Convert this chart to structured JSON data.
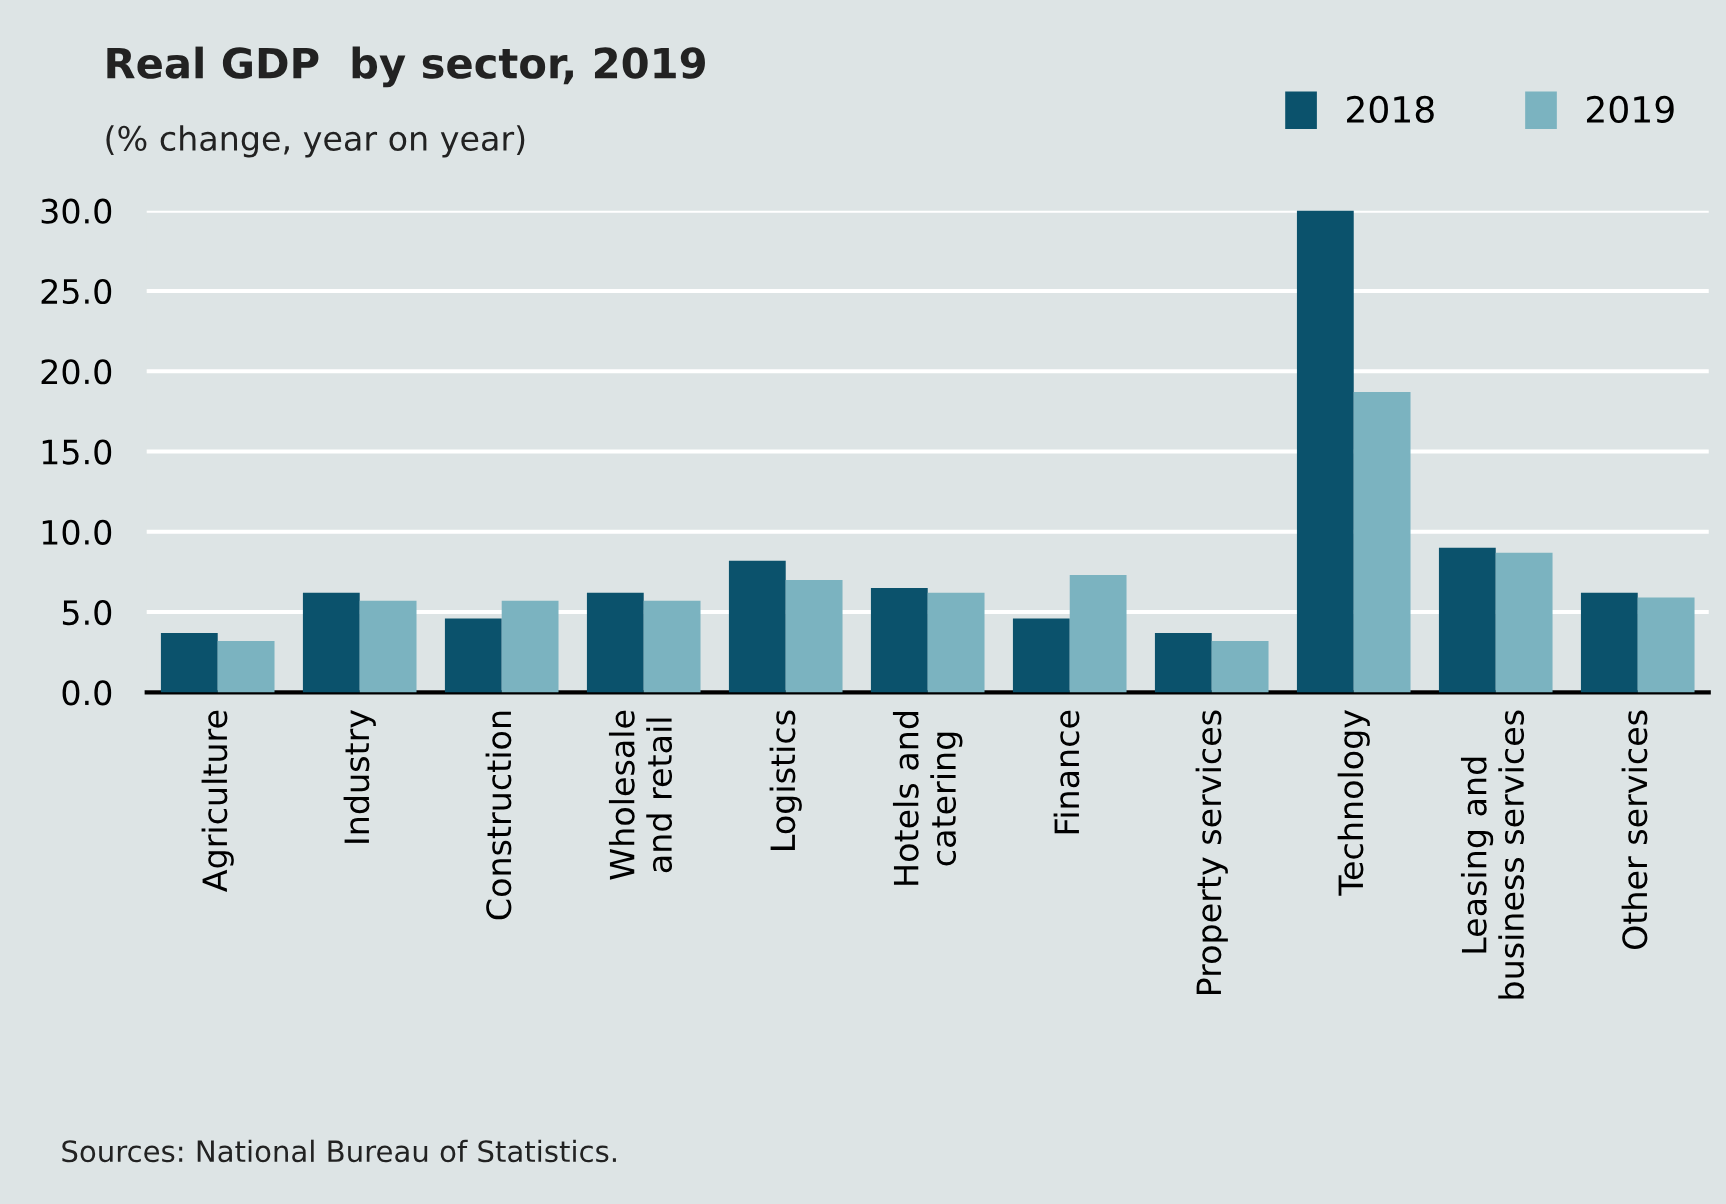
{
  "chart_data": {
    "type": "bar",
    "title": "Real GDP  by sector, 2019",
    "subtitle": "(% change, year on year)",
    "categories": [
      "Agriculture",
      "Industry",
      "Construction",
      "Wholesale\nand retail",
      "Logistics",
      "Hotels and\ncatering",
      "Finance",
      "Property services",
      "Technology",
      "Leasing and\nbusiness services",
      "Other services"
    ],
    "series": [
      {
        "name": "2018",
        "color": "#0b526c",
        "values": [
          3.7,
          6.2,
          4.6,
          6.2,
          8.2,
          6.5,
          4.6,
          3.7,
          30.0,
          9.0,
          6.2
        ]
      },
      {
        "name": "2019",
        "color": "#7bb3c0",
        "values": [
          3.2,
          5.7,
          5.7,
          5.7,
          7.0,
          6.2,
          7.3,
          3.2,
          18.7,
          8.7,
          5.9
        ]
      }
    ],
    "ylim": [
      0,
      30
    ],
    "yticks": [
      {
        "value": 0,
        "label": "0.0"
      },
      {
        "value": 5,
        "label": "5.0"
      },
      {
        "value": 10,
        "label": "10.0"
      },
      {
        "value": 15,
        "label": "15.0"
      },
      {
        "value": 20,
        "label": "20.0"
      },
      {
        "value": 25,
        "label": "25.0"
      },
      {
        "value": 30,
        "label": "30.0"
      }
    ],
    "grid": "y",
    "legend": "top right",
    "annotations": [
      "Sources: National Bureau of Statistics."
    ]
  }
}
